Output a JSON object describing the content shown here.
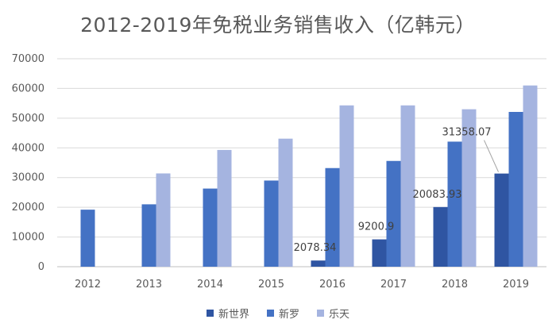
{
  "chart_data": {
    "type": "bar",
    "title": "2012-2019年免税业务销售收入（亿韩元）",
    "categories": [
      "2012",
      "2013",
      "2014",
      "2015",
      "2016",
      "2017",
      "2018",
      "2019"
    ],
    "series": [
      {
        "name": "新世界",
        "color": "#2f55a2",
        "values": [
          null,
          null,
          null,
          null,
          2078.34,
          9200.9,
          20083.93,
          31358.07
        ]
      },
      {
        "name": "新罗",
        "color": "#4472c4",
        "values": [
          19200,
          21000,
          26300,
          29000,
          33200,
          35600,
          42100,
          52100
        ]
      },
      {
        "name": "乐天",
        "color": "#a5b4e0",
        "values": [
          null,
          31400,
          39300,
          43100,
          54300,
          54300,
          53000,
          61000
        ]
      }
    ],
    "data_labels": [
      "2078.34",
      "9200.9",
      "20083.93",
      "31358.07"
    ],
    "yticks": [
      "0",
      "10000",
      "20000",
      "30000",
      "40000",
      "50000",
      "60000",
      "70000"
    ],
    "ylim": [
      0,
      70000
    ],
    "grid": true,
    "legend_position": "bottom"
  }
}
